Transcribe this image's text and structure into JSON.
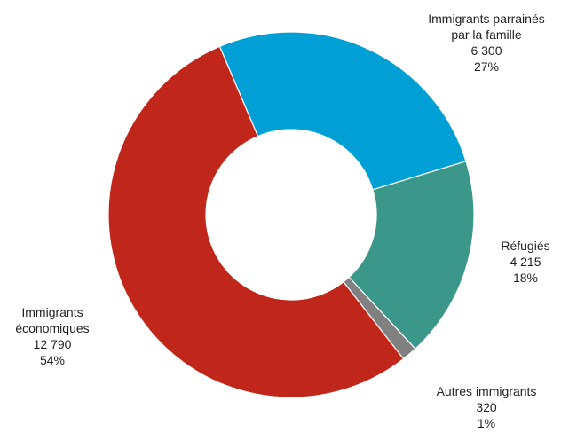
{
  "chart_data": {
    "type": "pie",
    "donut": true,
    "title": "",
    "slices": [
      {
        "label": "Immigrants parrainés par la famille",
        "value": 6300,
        "percent": "27%",
        "value_text": "6 300",
        "color": "#00a0d6"
      },
      {
        "label": "Réfugiés",
        "value": 4215,
        "percent": "18%",
        "value_text": "4 215",
        "color": "#3a978a"
      },
      {
        "label": "Autres immigrants",
        "value": 320,
        "percent": "1%",
        "value_text": "320",
        "color": "#808080"
      },
      {
        "label": "Immigrants économiques",
        "value": 12790,
        "percent": "54%",
        "value_text": "12 790",
        "color": "#c0271a"
      }
    ],
    "legend": "none"
  }
}
